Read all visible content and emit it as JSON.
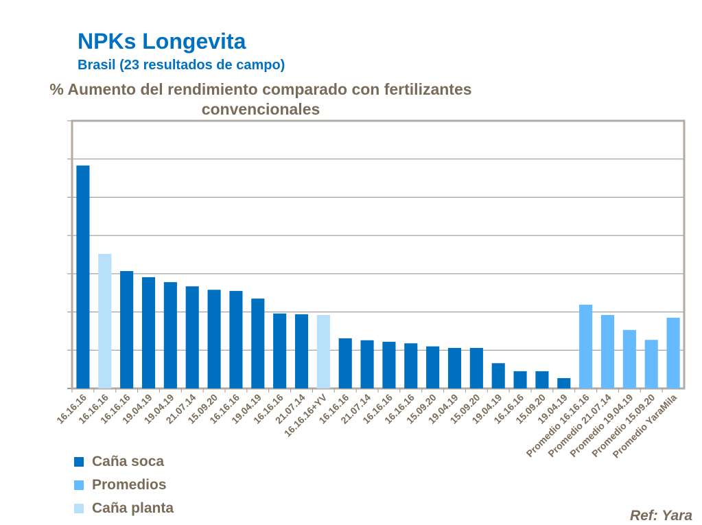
{
  "title": "NPKs Longevita",
  "subtitle": "Brasil (23 resultados de campo)",
  "reference": "Ref: Yara",
  "colors": {
    "cana_soca": "#0070c0",
    "promedios": "#66bbff",
    "cana_planta": "#b8e0fb"
  },
  "chart_data": {
    "type": "bar",
    "title": "% Aumento del rendimiento comparado con fertilizantes convencionales",
    "xlabel": "",
    "ylabel": "",
    "ylim": [
      0,
      7
    ],
    "y_tick_labels_shown": false,
    "grid": true,
    "legend_placement": "bottom-left",
    "legend": [
      {
        "name": "Caña soca",
        "group": "cana_soca"
      },
      {
        "name": "Promedios",
        "group": "promedios"
      },
      {
        "name": "Caña planta",
        "group": "cana_planta"
      }
    ],
    "categories": [
      "16.16.16",
      "16.16.16",
      "16.16.16",
      "19.04.19",
      "19.04.19",
      "21.07.14",
      "15.09.20",
      "16.16.16",
      "19.04.19",
      "16.16.16",
      "21.07.14",
      "16.16.16+YV",
      "16.16.16",
      "21.07.14",
      "16.16.16",
      "16.16.16",
      "15.09.20",
      "19.04.19",
      "15.09.20",
      "19.04.19",
      "16.16.16",
      "15.09.20",
      "19.04.19",
      "Promedio 16.16.16",
      "Promedio 21.07.14",
      "Promedio 19.04.19",
      "Promedio 15.09.20",
      "Promedio YaraMila"
    ],
    "values": [
      5.83,
      3.52,
      3.07,
      2.91,
      2.78,
      2.67,
      2.58,
      2.55,
      2.35,
      1.96,
      1.94,
      1.92,
      1.31,
      1.26,
      1.22,
      1.18,
      1.1,
      1.06,
      1.06,
      0.66,
      0.45,
      0.45,
      0.27,
      2.19,
      1.92,
      1.53,
      1.27,
      1.85
    ],
    "groups": [
      "cana_soca",
      "cana_planta",
      "cana_soca",
      "cana_soca",
      "cana_soca",
      "cana_soca",
      "cana_soca",
      "cana_soca",
      "cana_soca",
      "cana_soca",
      "cana_soca",
      "cana_planta",
      "cana_soca",
      "cana_soca",
      "cana_soca",
      "cana_soca",
      "cana_soca",
      "cana_soca",
      "cana_soca",
      "cana_soca",
      "cana_soca",
      "cana_soca",
      "cana_soca",
      "promedios",
      "promedios",
      "promedios",
      "promedios",
      "promedios"
    ]
  }
}
